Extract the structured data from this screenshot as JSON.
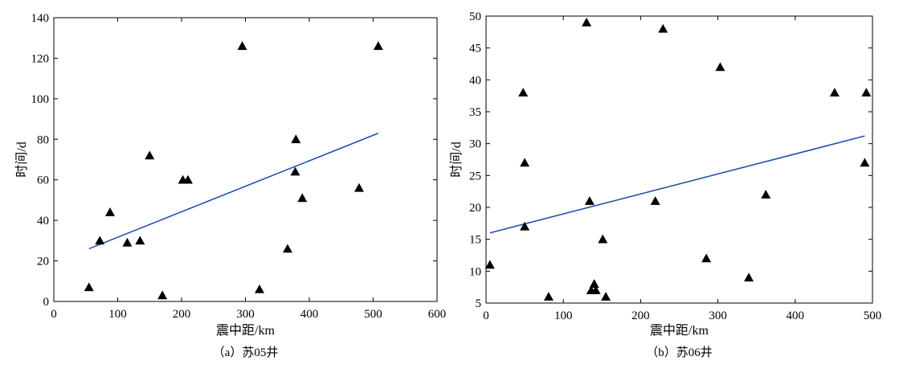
{
  "chart_data": [
    {
      "type": "scatter",
      "caption": "（a）苏05井",
      "xlabel": "震中距/km",
      "ylabel": "时间/d",
      "xlim": [
        0,
        600
      ],
      "ylim": [
        0,
        140
      ],
      "xticks": [
        "0",
        "100",
        "200",
        "300",
        "400",
        "500",
        "600"
      ],
      "yticks": [
        "0",
        "20",
        "40",
        "60",
        "80",
        "100",
        "120",
        "140"
      ],
      "grid": false,
      "marker_color": "#000000",
      "line_color": "#2352a6",
      "points": [
        {
          "x": 55,
          "y": 7
        },
        {
          "x": 72,
          "y": 30
        },
        {
          "x": 88,
          "y": 44
        },
        {
          "x": 115,
          "y": 29
        },
        {
          "x": 135,
          "y": 30
        },
        {
          "x": 150,
          "y": 72
        },
        {
          "x": 170,
          "y": 3
        },
        {
          "x": 202,
          "y": 60
        },
        {
          "x": 210,
          "y": 60
        },
        {
          "x": 295,
          "y": 126
        },
        {
          "x": 322,
          "y": 6
        },
        {
          "x": 366,
          "y": 26
        },
        {
          "x": 378,
          "y": 64
        },
        {
          "x": 379,
          "y": 80
        },
        {
          "x": 389,
          "y": 51
        },
        {
          "x": 478,
          "y": 56
        },
        {
          "x": 508,
          "y": 126
        }
      ],
      "trendline": [
        {
          "x": 55,
          "y": 26
        },
        {
          "x": 508,
          "y": 83
        }
      ]
    },
    {
      "type": "scatter",
      "caption": "（b）苏06井",
      "xlabel": "震中距/km",
      "ylabel": "时间/d",
      "xlim": [
        0,
        500
      ],
      "ylim": [
        5,
        50
      ],
      "xticks": [
        "0",
        "100",
        "200",
        "300",
        "400",
        "500"
      ],
      "yticks": [
        "5",
        "10",
        "15",
        "20",
        "25",
        "30",
        "35",
        "40",
        "45",
        "50"
      ],
      "grid": false,
      "marker_color": "#000000",
      "line_color": "#2352a6",
      "points": [
        {
          "x": 5,
          "y": 11
        },
        {
          "x": 48,
          "y": 38
        },
        {
          "x": 50,
          "y": 27
        },
        {
          "x": 50,
          "y": 17
        },
        {
          "x": 81,
          "y": 6
        },
        {
          "x": 130,
          "y": 49
        },
        {
          "x": 134,
          "y": 21
        },
        {
          "x": 136,
          "y": 7
        },
        {
          "x": 140,
          "y": 8
        },
        {
          "x": 142,
          "y": 7
        },
        {
          "x": 151,
          "y": 15
        },
        {
          "x": 155,
          "y": 6
        },
        {
          "x": 219,
          "y": 21
        },
        {
          "x": 229,
          "y": 48
        },
        {
          "x": 285,
          "y": 12
        },
        {
          "x": 303,
          "y": 42
        },
        {
          "x": 340,
          "y": 9
        },
        {
          "x": 362,
          "y": 22
        },
        {
          "x": 451,
          "y": 38
        },
        {
          "x": 490,
          "y": 27
        },
        {
          "x": 492,
          "y": 38
        }
      ],
      "trendline": [
        {
          "x": 5,
          "y": 16
        },
        {
          "x": 490,
          "y": 31.2
        }
      ]
    }
  ]
}
